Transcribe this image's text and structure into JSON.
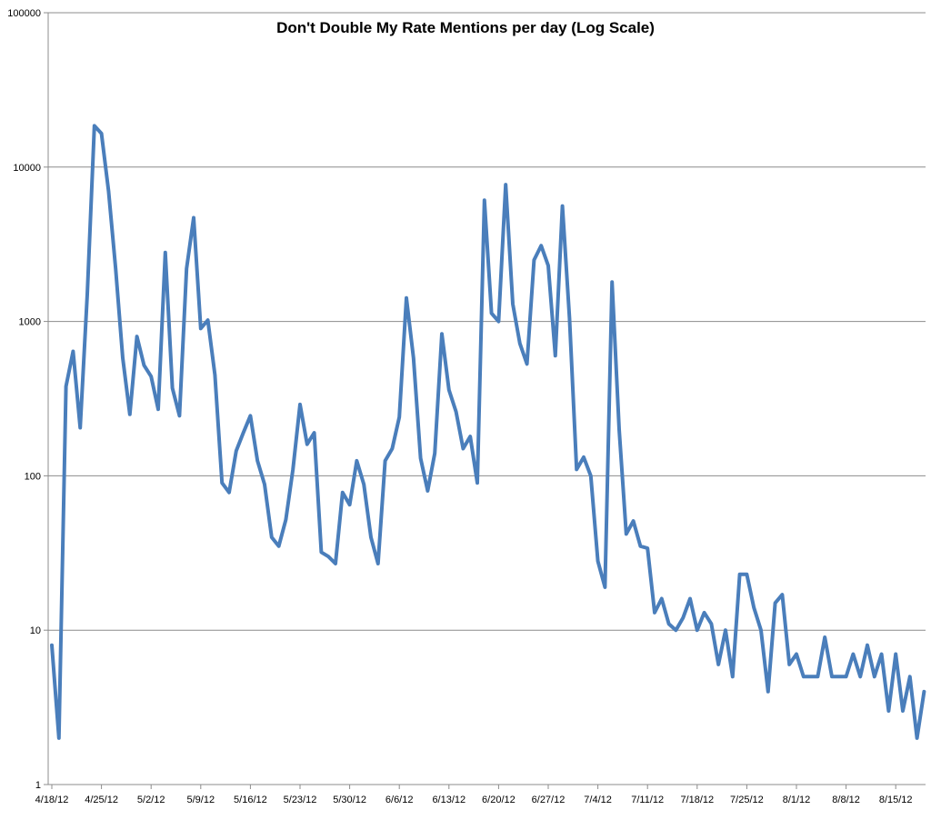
{
  "chart_data": {
    "type": "line",
    "title": "Don't Double My Rate Mentions per day (Log Scale)",
    "xlabel": "",
    "ylabel": "",
    "y_scale": "log",
    "ylim": [
      1,
      100000
    ],
    "y_ticks": [
      "1",
      "10",
      "100",
      "1000",
      "10000",
      "100000"
    ],
    "x_start": "4/18/12",
    "x_end": "8/22/12",
    "x_tick_labels": [
      "4/18/12",
      "4/25/12",
      "5/2/12",
      "5/9/12",
      "5/16/12",
      "5/23/12",
      "5/30/12",
      "6/6/12",
      "6/13/12",
      "6/20/12",
      "6/27/12",
      "7/4/12",
      "7/11/12",
      "7/18/12",
      "7/25/12",
      "8/1/12",
      "8/8/12",
      "8/15/12"
    ],
    "grid": "horizontal",
    "legend": "none",
    "line_color": "#4a7ebb",
    "series": [
      {
        "values": [
          8,
          2,
          380,
          640,
          205,
          1500,
          18500,
          16500,
          7000,
          2200,
          580,
          250,
          800,
          520,
          440,
          270,
          2800,
          370,
          245,
          2200,
          4700,
          900,
          1020,
          450,
          90,
          78,
          145,
          190,
          245,
          125,
          88,
          40,
          35,
          52,
          110,
          290,
          160,
          190,
          32,
          30,
          27,
          78,
          65,
          125,
          88,
          40,
          27,
          125,
          150,
          240,
          1420,
          580,
          130,
          80,
          140,
          830,
          360,
          260,
          150,
          180,
          90,
          6100,
          1130,
          1000,
          7700,
          1300,
          720,
          530,
          2500,
          3100,
          2300,
          600,
          5600,
          1050,
          110,
          132,
          100,
          28,
          19,
          1800,
          200,
          42,
          51,
          35,
          34,
          13,
          16,
          11,
          10,
          12,
          16,
          10,
          13,
          11,
          6,
          10,
          5,
          23,
          23,
          14,
          10,
          4,
          15,
          17,
          6,
          7,
          5,
          5,
          5,
          9,
          5,
          5,
          5,
          7,
          5,
          8,
          5,
          7,
          3,
          7,
          3,
          5,
          2,
          4
        ]
      }
    ]
  }
}
